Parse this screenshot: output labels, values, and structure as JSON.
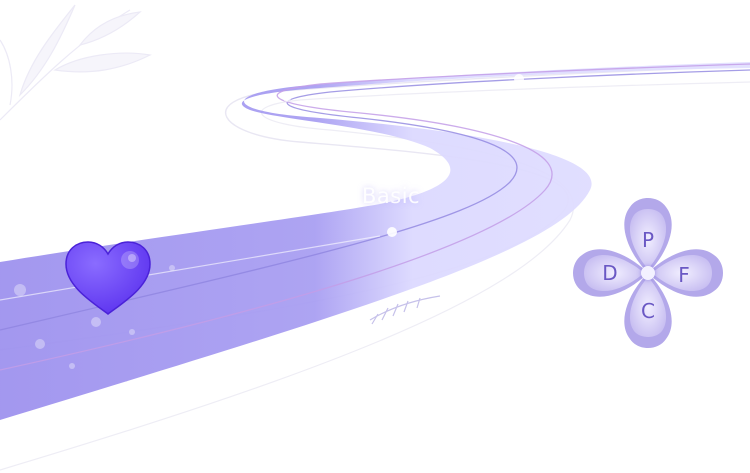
{
  "level": {
    "label": "Basic"
  },
  "controls": {
    "up": "P",
    "left": "D",
    "right": "F",
    "down": "C"
  },
  "colors": {
    "road_main": "#a89ef0",
    "road_light": "#dcdaff",
    "heart": "#6b46f5",
    "dpad_petal": "#b3a8ea",
    "dpad_petal_inner": "#e8e4ff",
    "dpad_text": "#6a58c4"
  },
  "icons": {
    "player": "heart-icon",
    "decoration": "leaf-icon"
  }
}
